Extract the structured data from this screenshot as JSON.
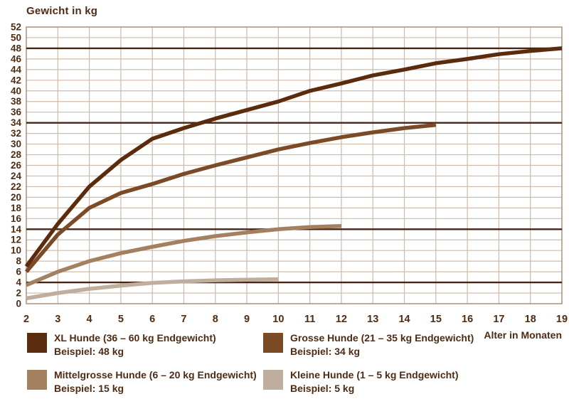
{
  "chart_data": {
    "type": "line",
    "title": "Gewicht in kg",
    "xlabel": "Alter in Monaten",
    "ylabel": "Gewicht in kg",
    "xlim": [
      2,
      19
    ],
    "ylim": [
      0,
      52
    ],
    "grid": true,
    "x_ticks": [
      2,
      3,
      4,
      5,
      6,
      7,
      8,
      9,
      10,
      11,
      12,
      13,
      14,
      15,
      16,
      17,
      18,
      19
    ],
    "y_ticks": [
      0,
      2,
      4,
      6,
      8,
      10,
      12,
      14,
      16,
      18,
      20,
      22,
      24,
      26,
      28,
      30,
      32,
      34,
      36,
      38,
      40,
      42,
      44,
      46,
      48,
      50,
      52
    ],
    "reference_lines": [
      48,
      34,
      14,
      4
    ],
    "series": [
      {
        "label": "XL Hunde (36 – 60 kg Endgewicht)",
        "example": "Beispiel: 48 kg",
        "color": "#5a2b0d",
        "x": [
          2,
          3,
          4,
          5,
          6,
          7,
          8,
          9,
          10,
          11,
          12,
          13,
          14,
          15,
          16,
          17,
          18,
          19
        ],
        "values": [
          7,
          15,
          22,
          27,
          31,
          33,
          34.8,
          36.4,
          38,
          40,
          41.4,
          42.9,
          44,
          45.2,
          46,
          46.9,
          47.5,
          48
        ]
      },
      {
        "label": "Grosse Hunde (21 – 35 kg Endgewicht)",
        "example": "Beispiel: 34 kg",
        "color": "#7b4a26",
        "x": [
          2,
          3,
          4,
          5,
          6,
          7,
          8,
          9,
          10,
          11,
          12,
          13,
          14,
          15
        ],
        "values": [
          6,
          13,
          18,
          20.8,
          22.5,
          24.4,
          26,
          27.5,
          29,
          30.2,
          31.3,
          32.2,
          33,
          33.6
        ]
      },
      {
        "label": "Mittelgrosse Hunde (6 – 20 kg Endgewicht)",
        "example": "Beispiel: 15 kg",
        "color": "#a3805f",
        "x": [
          2,
          3,
          4,
          5,
          6,
          7,
          8,
          9,
          10,
          11,
          12
        ],
        "values": [
          3.5,
          6,
          8,
          9.5,
          10.7,
          11.8,
          12.7,
          13.4,
          14,
          14.4,
          14.6
        ]
      },
      {
        "label": "Kleine Hunde (1 – 5 kg Endgewicht)",
        "example": "Beispiel: 5 kg",
        "color": "#bfae9d",
        "x": [
          2,
          3,
          4,
          5,
          6,
          7,
          8,
          9,
          10
        ],
        "values": [
          1,
          2,
          2.8,
          3.4,
          3.9,
          4.2,
          4.4,
          4.5,
          4.6
        ]
      }
    ],
    "colors": {
      "text": "#4e2b13",
      "grid": "#cdbbab",
      "plot_border": "#a98f76",
      "reference_line": "#4a2410",
      "background": "#ffffff"
    }
  }
}
